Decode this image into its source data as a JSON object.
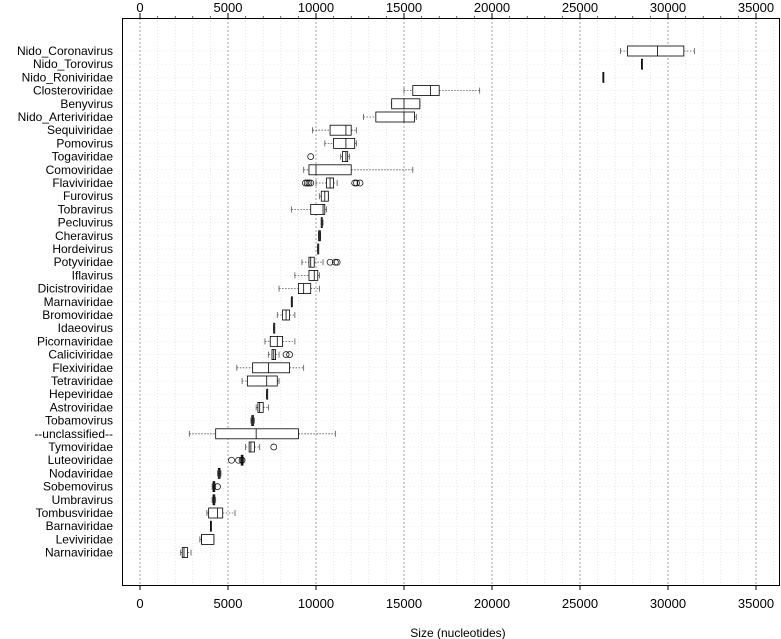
{
  "chart_data": {
    "type": "boxplot",
    "orientation": "horizontal",
    "xlabel": "Size (nucleotides)",
    "xlim": [
      -2000,
      36000
    ],
    "xticks": [
      0,
      5000,
      10000,
      15000,
      20000,
      25000,
      30000,
      35000
    ],
    "x_axis_position": "top-and-bottom",
    "grid": true,
    "categories": [
      {
        "name": "Nido_Coronavirus",
        "wlo": 27300,
        "q1": 27700,
        "median": 29400,
        "q3": 30900,
        "whi": 31500,
        "outliers": []
      },
      {
        "name": "Nido_Torovirus",
        "wlo": 28500,
        "q1": 28500,
        "median": 28500,
        "q3": 28500,
        "whi": 28500,
        "outliers": []
      },
      {
        "name": "Nido_Roniviridae",
        "wlo": 26300,
        "q1": 26300,
        "median": 26300,
        "q3": 26300,
        "whi": 26300,
        "outliers": []
      },
      {
        "name": "Closteroviridae",
        "wlo": 15000,
        "q1": 15500,
        "median": 16500,
        "q3": 17000,
        "whi": 19300,
        "outliers": []
      },
      {
        "name": "Benyvirus",
        "wlo": 14300,
        "q1": 14300,
        "median": 15000,
        "q3": 15900,
        "whi": 15900,
        "outliers": []
      },
      {
        "name": "Nido_Arteriviridae",
        "wlo": 12700,
        "q1": 13400,
        "median": 15000,
        "q3": 15600,
        "whi": 15700,
        "outliers": []
      },
      {
        "name": "Sequiviridae",
        "wlo": 9800,
        "q1": 10800,
        "median": 11700,
        "q3": 12000,
        "whi": 12300,
        "outliers": []
      },
      {
        "name": "Pomovirus",
        "wlo": 10500,
        "q1": 11000,
        "median": 11700,
        "q3": 12200,
        "whi": 12300,
        "outliers": []
      },
      {
        "name": "Togaviridae",
        "wlo": 11400,
        "q1": 11500,
        "median": 11700,
        "q3": 11800,
        "whi": 11900,
        "outliers": [
          9700
        ]
      },
      {
        "name": "Comoviridae",
        "wlo": 9300,
        "q1": 9600,
        "median": 10000,
        "q3": 12000,
        "whi": 15500,
        "outliers": []
      },
      {
        "name": "Flaviviridae",
        "wlo": 10000,
        "q1": 10600,
        "median": 10800,
        "q3": 11000,
        "whi": 11200,
        "outliers": [
          9400,
          9500,
          9600,
          9700,
          12200,
          12300,
          12500
        ]
      },
      {
        "name": "Furovirus",
        "wlo": 10200,
        "q1": 10300,
        "median": 10500,
        "q3": 10700,
        "whi": 10700,
        "outliers": []
      },
      {
        "name": "Tobravirus",
        "wlo": 8600,
        "q1": 9700,
        "median": 10400,
        "q3": 10500,
        "whi": 10600,
        "outliers": []
      },
      {
        "name": "Pecluvirus",
        "wlo": 10300,
        "q1": 10300,
        "median": 10300,
        "q3": 10350,
        "whi": 10400,
        "outliers": []
      },
      {
        "name": "Cheravirus",
        "wlo": 10150,
        "q1": 10150,
        "median": 10200,
        "q3": 10250,
        "whi": 10250,
        "outliers": []
      },
      {
        "name": "Hordeivirus",
        "wlo": 10100,
        "q1": 10100,
        "median": 10100,
        "q3": 10100,
        "whi": 10100,
        "outliers": []
      },
      {
        "name": "Potyviridae",
        "wlo": 9200,
        "q1": 9600,
        "median": 9700,
        "q3": 9900,
        "whi": 10400,
        "outliers": [
          10800,
          11100,
          11200
        ]
      },
      {
        "name": "Iflavirus",
        "wlo": 8800,
        "q1": 9600,
        "median": 9900,
        "q3": 10100,
        "whi": 10200,
        "outliers": []
      },
      {
        "name": "Dicistroviridae",
        "wlo": 7900,
        "q1": 9000,
        "median": 9300,
        "q3": 9700,
        "whi": 10200,
        "outliers": []
      },
      {
        "name": "Marnaviridae",
        "wlo": 8600,
        "q1": 8600,
        "median": 8600,
        "q3": 8600,
        "whi": 8600,
        "outliers": []
      },
      {
        "name": "Bromoviridae",
        "wlo": 7800,
        "q1": 8100,
        "median": 8300,
        "q3": 8500,
        "whi": 8800,
        "outliers": []
      },
      {
        "name": "Idaeovirus",
        "wlo": 7600,
        "q1": 7600,
        "median": 7600,
        "q3": 7600,
        "whi": 7600,
        "outliers": []
      },
      {
        "name": "Picornaviridae",
        "wlo": 7100,
        "q1": 7400,
        "median": 7800,
        "q3": 8100,
        "whi": 8800,
        "outliers": []
      },
      {
        "name": "Caliciviridae",
        "wlo": 7300,
        "q1": 7500,
        "median": 7600,
        "q3": 7700,
        "whi": 7900,
        "outliers": [
          8300,
          8500
        ]
      },
      {
        "name": "Flexiviridae",
        "wlo": 5500,
        "q1": 6400,
        "median": 7300,
        "q3": 8500,
        "whi": 9300,
        "outliers": []
      },
      {
        "name": "Tetraviridae",
        "wlo": 5800,
        "q1": 6100,
        "median": 7200,
        "q3": 7800,
        "whi": 7900,
        "outliers": []
      },
      {
        "name": "Hepeviridae",
        "wlo": 7200,
        "q1": 7200,
        "median": 7200,
        "q3": 7200,
        "whi": 7200,
        "outliers": []
      },
      {
        "name": "Astroviridae",
        "wlo": 6600,
        "q1": 6700,
        "median": 6800,
        "q3": 7000,
        "whi": 7300,
        "outliers": []
      },
      {
        "name": "Tobamovirus",
        "wlo": 6300,
        "q1": 6350,
        "median": 6400,
        "q3": 6450,
        "whi": 6500,
        "outliers": []
      },
      {
        "name": "--unclassified--",
        "wlo": 2800,
        "q1": 4300,
        "median": 6600,
        "q3": 9000,
        "whi": 11100,
        "outliers": []
      },
      {
        "name": "Tymoviridae",
        "wlo": 6000,
        "q1": 6200,
        "median": 6300,
        "q3": 6500,
        "whi": 6800,
        "outliers": [
          7600
        ]
      },
      {
        "name": "Luteoviridae",
        "wlo": 5700,
        "q1": 5750,
        "median": 5800,
        "q3": 5850,
        "whi": 5900,
        "outliers": [
          5200,
          5600,
          5800
        ]
      },
      {
        "name": "Nodaviridae",
        "wlo": 4400,
        "q1": 4450,
        "median": 4500,
        "q3": 4550,
        "whi": 4600,
        "outliers": []
      },
      {
        "name": "Sobemovirus",
        "wlo": 4100,
        "q1": 4150,
        "median": 4200,
        "q3": 4250,
        "whi": 4300,
        "outliers": [
          4400
        ]
      },
      {
        "name": "Umbravirus",
        "wlo": 4100,
        "q1": 4150,
        "median": 4200,
        "q3": 4250,
        "whi": 4300,
        "outliers": []
      },
      {
        "name": "Tombusviridae",
        "wlo": 3800,
        "q1": 3900,
        "median": 4400,
        "q3": 4700,
        "whi": 5400,
        "outliers": []
      },
      {
        "name": "Barnaviridae",
        "wlo": 4000,
        "q1": 4000,
        "median": 4000,
        "q3": 4000,
        "whi": 4000,
        "outliers": []
      },
      {
        "name": "Leviviridae",
        "wlo": 3400,
        "q1": 3500,
        "median": 3500,
        "q3": 4200,
        "whi": 4200,
        "outliers": []
      },
      {
        "name": "Narnaviridae",
        "wlo": 2300,
        "q1": 2400,
        "median": 2500,
        "q3": 2700,
        "whi": 2900,
        "outliers": []
      }
    ]
  },
  "colors": {
    "box_stroke": "#000000",
    "whisker": "#555555",
    "grid": "#d8d8d8",
    "grid_major": "#888888",
    "frame": "#000000"
  }
}
